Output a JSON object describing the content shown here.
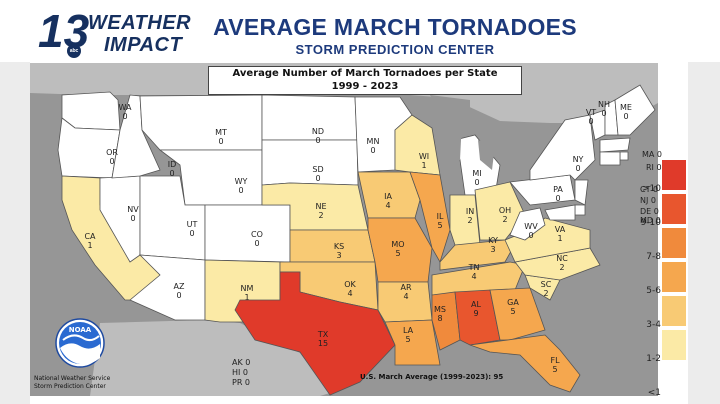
{
  "header": {
    "brand_number": "13",
    "brand_abc": "abc",
    "brand_weather": "WEATHER",
    "brand_impact": "IMPACT",
    "title": "AVERAGE MARCH TORNADOES",
    "subtitle": "STORM PREDICTION CENTER"
  },
  "map": {
    "title_line1": "Average Number of March Tornadoes per State",
    "title_line2": "1999 - 2023",
    "average_text": "U.S. March Average (1999-2023): 95",
    "nws_line1": "National Weather Service",
    "nws_line2": "Storm Prediction Center",
    "noaa_label": "NOAA"
  },
  "states": [
    {
      "abbr": "WA",
      "value": "0"
    },
    {
      "abbr": "OR",
      "value": "0"
    },
    {
      "abbr": "CA",
      "value": "1"
    },
    {
      "abbr": "NV",
      "value": "0"
    },
    {
      "abbr": "ID",
      "value": "0"
    },
    {
      "abbr": "MT",
      "value": "0"
    },
    {
      "abbr": "WY",
      "value": "0"
    },
    {
      "abbr": "UT",
      "value": "0"
    },
    {
      "abbr": "AZ",
      "value": "0"
    },
    {
      "abbr": "CO",
      "value": "0"
    },
    {
      "abbr": "NM",
      "value": "1"
    },
    {
      "abbr": "ND",
      "value": "0"
    },
    {
      "abbr": "SD",
      "value": "0"
    },
    {
      "abbr": "NE",
      "value": "2"
    },
    {
      "abbr": "KS",
      "value": "3"
    },
    {
      "abbr": "OK",
      "value": "4"
    },
    {
      "abbr": "TX",
      "value": "15"
    },
    {
      "abbr": "MN",
      "value": "0"
    },
    {
      "abbr": "IA",
      "value": "4"
    },
    {
      "abbr": "MO",
      "value": "5"
    },
    {
      "abbr": "AR",
      "value": "4"
    },
    {
      "abbr": "LA",
      "value": "5"
    },
    {
      "abbr": "WI",
      "value": "1"
    },
    {
      "abbr": "IL",
      "value": "5"
    },
    {
      "abbr": "MI",
      "value": "0"
    },
    {
      "abbr": "IN",
      "value": "2"
    },
    {
      "abbr": "OH",
      "value": "2"
    },
    {
      "abbr": "KY",
      "value": "3"
    },
    {
      "abbr": "TN",
      "value": "4"
    },
    {
      "abbr": "MS",
      "value": "8"
    },
    {
      "abbr": "AL",
      "value": "9"
    },
    {
      "abbr": "GA",
      "value": "5"
    },
    {
      "abbr": "FL",
      "value": "5"
    },
    {
      "abbr": "SC",
      "value": "2"
    },
    {
      "abbr": "NC",
      "value": "2"
    },
    {
      "abbr": "VA",
      "value": "1"
    },
    {
      "abbr": "WV",
      "value": "0"
    },
    {
      "abbr": "PA",
      "value": "0"
    },
    {
      "abbr": "NY",
      "value": "0"
    },
    {
      "abbr": "VT",
      "value": "0"
    },
    {
      "abbr": "NH",
      "value": "0"
    },
    {
      "abbr": "ME",
      "value": "0"
    },
    {
      "abbr": "MA",
      "value": "0"
    },
    {
      "abbr": "RI",
      "value": "0"
    },
    {
      "abbr": "CT",
      "value": "0"
    },
    {
      "abbr": "NJ",
      "value": "0"
    },
    {
      "abbr": "DE",
      "value": "0"
    },
    {
      "abbr": "MD",
      "value": "0"
    },
    {
      "abbr": "AK",
      "value": "0"
    },
    {
      "abbr": "HI",
      "value": "0"
    },
    {
      "abbr": "PR",
      "value": "0"
    }
  ],
  "legend": [
    {
      "label": ">10",
      "color": "#e03a2a"
    },
    {
      "label": "9-10",
      "color": "#e8562e"
    },
    {
      "label": "7-8",
      "color": "#f08a3c"
    },
    {
      "label": "5-6",
      "color": "#f5a74e"
    },
    {
      "label": "3-4",
      "color": "#f8ca74"
    },
    {
      "label": "1-2",
      "color": "#fbeaa6"
    },
    {
      "label": "<1",
      "color": "#ffffff"
    }
  ],
  "colors": {
    "water": "#969696",
    "brand": "#16305f",
    "title": "#1d3a7c",
    "zero": "#ffffff"
  }
}
